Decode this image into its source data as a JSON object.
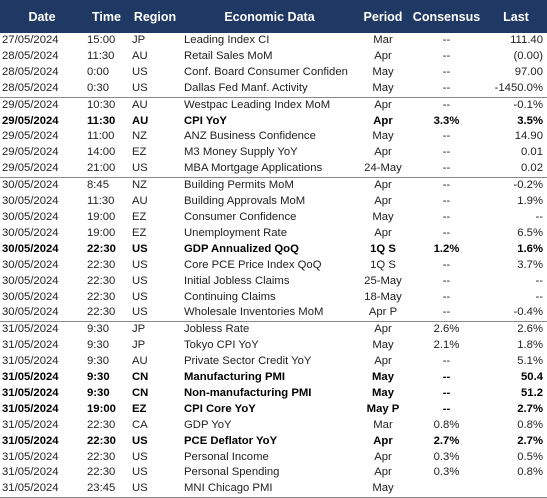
{
  "header": {
    "date": "Date",
    "time": "Time",
    "region": "Region",
    "economic_data": "Economic Data",
    "period": "Period",
    "consensus": "Consensus",
    "last": "Last"
  },
  "rows": [
    {
      "date": "27/05/2024",
      "time": "15:00",
      "region": "JP",
      "data": "Leading Index CI",
      "period": "Mar",
      "consensus": "--",
      "last": "111.40",
      "bold": false,
      "group_start": false
    },
    {
      "date": "28/05/2024",
      "time": "11:30",
      "region": "AU",
      "data": "Retail Sales MoM",
      "period": "Apr",
      "consensus": "--",
      "last": "(0.00)",
      "bold": false,
      "group_start": false
    },
    {
      "date": "28/05/2024",
      "time": "0:00",
      "region": "US",
      "data": "Conf. Board Consumer Confiden",
      "period": "May",
      "consensus": "--",
      "last": "97.00",
      "bold": false,
      "group_start": false
    },
    {
      "date": "28/05/2024",
      "time": "0:30",
      "region": "US",
      "data": "Dallas Fed Manf. Activity",
      "period": "May",
      "consensus": "--",
      "last": "-1450.0%",
      "bold": false,
      "group_start": false
    },
    {
      "date": "29/05/2024",
      "time": "10:30",
      "region": "AU",
      "data": "Westpac Leading Index MoM",
      "period": "Apr",
      "consensus": "--",
      "last": "-0.1%",
      "bold": false,
      "group_start": true
    },
    {
      "date": "29/05/2024",
      "time": "11:30",
      "region": "AU",
      "data": "CPI YoY",
      "period": "Apr",
      "consensus": "3.3%",
      "last": "3.5%",
      "bold": true,
      "group_start": false
    },
    {
      "date": "29/05/2024",
      "time": "11:00",
      "region": "NZ",
      "data": "ANZ Business Confidence",
      "period": "May",
      "consensus": "--",
      "last": "14.90",
      "bold": false,
      "group_start": false
    },
    {
      "date": "29/05/2024",
      "time": "14:00",
      "region": "EZ",
      "data": "M3 Money Supply YoY",
      "period": "Apr",
      "consensus": "--",
      "last": "0.01",
      "bold": false,
      "group_start": false
    },
    {
      "date": "29/05/2024",
      "time": "21:00",
      "region": "US",
      "data": "MBA Mortgage Applications",
      "period": "24-May",
      "consensus": "--",
      "last": "0.02",
      "bold": false,
      "group_start": false
    },
    {
      "date": "30/05/2024",
      "time": "8:45",
      "region": "NZ",
      "data": "Building Permits MoM",
      "period": "Apr",
      "consensus": "--",
      "last": "-0.2%",
      "bold": false,
      "group_start": true
    },
    {
      "date": "30/05/2024",
      "time": "11:30",
      "region": "AU",
      "data": "Building Approvals MoM",
      "period": "Apr",
      "consensus": "--",
      "last": "1.9%",
      "bold": false,
      "group_start": false
    },
    {
      "date": "30/05/2024",
      "time": "19:00",
      "region": "EZ",
      "data": "Consumer Confidence",
      "period": "May",
      "consensus": "--",
      "last": "--",
      "bold": false,
      "group_start": false
    },
    {
      "date": "30/05/2024",
      "time": "19:00",
      "region": "EZ",
      "data": "Unemployment Rate",
      "period": "Apr",
      "consensus": "--",
      "last": "6.5%",
      "bold": false,
      "group_start": false
    },
    {
      "date": "30/05/2024",
      "time": "22:30",
      "region": "US",
      "data": "GDP Annualized QoQ",
      "period": "1Q S",
      "consensus": "1.2%",
      "last": "1.6%",
      "bold": true,
      "group_start": false
    },
    {
      "date": "30/05/2024",
      "time": "22:30",
      "region": "US",
      "data": "Core PCE Price Index QoQ",
      "period": "1Q S",
      "consensus": "--",
      "last": "3.7%",
      "bold": false,
      "group_start": false
    },
    {
      "date": "30/05/2024",
      "time": "22:30",
      "region": "US",
      "data": "Initial Jobless Claims",
      "period": "25-May",
      "consensus": "--",
      "last": "--",
      "bold": false,
      "group_start": false
    },
    {
      "date": "30/05/2024",
      "time": "22:30",
      "region": "US",
      "data": "Continuing Claims",
      "period": "18-May",
      "consensus": "--",
      "last": "--",
      "bold": false,
      "group_start": false
    },
    {
      "date": "30/05/2024",
      "time": "22:30",
      "region": "US",
      "data": "Wholesale Inventories MoM",
      "period": "Apr P",
      "consensus": "--",
      "last": "-0.4%",
      "bold": false,
      "group_start": false
    },
    {
      "date": "31/05/2024",
      "time": "9:30",
      "region": "JP",
      "data": "Jobless Rate",
      "period": "Apr",
      "consensus": "2.6%",
      "last": "2.6%",
      "bold": false,
      "group_start": true
    },
    {
      "date": "31/05/2024",
      "time": "9:30",
      "region": "JP",
      "data": "Tokyo CPI YoY",
      "period": "May",
      "consensus": "2.1%",
      "last": "1.8%",
      "bold": false,
      "group_start": false
    },
    {
      "date": "31/05/2024",
      "time": "9:30",
      "region": "AU",
      "data": "Private Sector Credit YoY",
      "period": "Apr",
      "consensus": "--",
      "last": "5.1%",
      "bold": false,
      "group_start": false
    },
    {
      "date": "31/05/2024",
      "time": "9:30",
      "region": "CN",
      "data": "Manufacturing PMI",
      "period": "May",
      "consensus": "--",
      "last": "50.4",
      "bold": true,
      "group_start": false
    },
    {
      "date": "31/05/2024",
      "time": "9:30",
      "region": "CN",
      "data": "Non-manufacturing PMI",
      "period": "May",
      "consensus": "--",
      "last": "51.2",
      "bold": true,
      "group_start": false
    },
    {
      "date": "31/05/2024",
      "time": "19:00",
      "region": "EZ",
      "data": "CPI Core YoY",
      "period": "May P",
      "consensus": "--",
      "last": "2.7%",
      "bold": true,
      "group_start": false
    },
    {
      "date": "31/05/2024",
      "time": "22:30",
      "region": "CA",
      "data": "GDP YoY",
      "period": "Mar",
      "consensus": "0.8%",
      "last": "0.8%",
      "bold": false,
      "group_start": false
    },
    {
      "date": "31/05/2024",
      "time": "22:30",
      "region": "US",
      "data": "PCE Deflator YoY",
      "period": "Apr",
      "consensus": "2.7%",
      "last": "2.7%",
      "bold": true,
      "group_start": false
    },
    {
      "date": "31/05/2024",
      "time": "22:30",
      "region": "US",
      "data": "Personal Income",
      "period": "Apr",
      "consensus": "0.3%",
      "last": "0.5%",
      "bold": false,
      "group_start": false
    },
    {
      "date": "31/05/2024",
      "time": "22:30",
      "region": "US",
      "data": "Personal Spending",
      "period": "Apr",
      "consensus": "0.3%",
      "last": "0.8%",
      "bold": false,
      "group_start": false
    },
    {
      "date": "31/05/2024",
      "time": "23:45",
      "region": "US",
      "data": "MNI Chicago PMI",
      "period": "May",
      "consensus": "",
      "last": "",
      "bold": false,
      "group_start": false
    }
  ],
  "colors": {
    "header_background": "#1f3864",
    "header_text": "#ffffff",
    "row_text": "#222222",
    "separator": "#8a8a8a"
  }
}
